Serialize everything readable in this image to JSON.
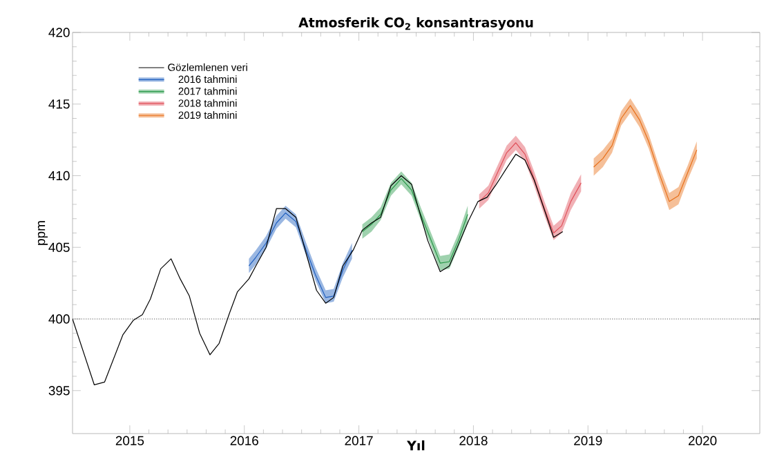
{
  "chart_data": {
    "type": "line",
    "title": "Atmosferik CO$_{2}$ konsantrasyonu",
    "xlabel": "Yıl",
    "ylabel": "ppm",
    "xlim": [
      2014.5,
      2020.5
    ],
    "ylim": [
      392,
      420
    ],
    "xticks": [
      2015,
      2016,
      2017,
      2018,
      2019,
      2020
    ],
    "yticks": [
      395,
      400,
      405,
      410,
      415,
      420
    ],
    "grid": false,
    "legend": "top left",
    "marker": "none",
    "line_style": "solid",
    "ref_lines": [
      {
        "axis": "y",
        "value": 400,
        "color": "#555555",
        "line_style": "dotted"
      }
    ],
    "series": [
      {
        "name": "Gözlemlenen veri",
        "color": "#000000",
        "x": [
          2014.5,
          2014.69,
          2014.78,
          2014.94,
          2015.03,
          2015.11,
          2015.18,
          2015.27,
          2015.36,
          2015.44,
          2015.52,
          2015.61,
          2015.7,
          2015.78,
          2015.87,
          2015.94,
          2016.04,
          2016.1,
          2016.19,
          2016.28,
          2016.36,
          2016.45,
          2016.56,
          2016.63,
          2016.71,
          2016.78,
          2016.86,
          2016.95,
          2017.03,
          2017.11,
          2017.19,
          2017.28,
          2017.37,
          2017.46,
          2017.6,
          2017.71,
          2017.79,
          2017.87,
          2017.96,
          2018.04,
          2018.12,
          2018.2,
          2018.28,
          2018.37,
          2018.45,
          2018.53,
          2018.62,
          2018.7,
          2018.78
        ],
        "values": [
          400.0,
          395.4,
          395.6,
          398.9,
          399.9,
          400.3,
          401.4,
          403.5,
          404.2,
          402.8,
          401.6,
          399.0,
          397.5,
          398.3,
          400.4,
          401.9,
          402.8,
          403.7,
          405.0,
          407.7,
          407.7,
          407.1,
          404.0,
          402.0,
          401.1,
          401.5,
          403.7,
          404.8,
          406.2,
          406.7,
          407.1,
          409.3,
          410.0,
          409.4,
          405.5,
          403.3,
          403.7,
          405.2,
          406.9,
          408.2,
          408.5,
          409.4,
          410.4,
          411.5,
          411.1,
          409.7,
          407.6,
          405.7,
          406.1
        ]
      },
      {
        "name": "2016 tahmini",
        "color": "#1f5fbf",
        "x": [
          2016.04,
          2016.1,
          2016.19,
          2016.28,
          2016.36,
          2016.45,
          2016.54,
          2016.62,
          2016.71,
          2016.78,
          2016.86,
          2016.94
        ],
        "values": [
          403.7,
          404.3,
          405.3,
          406.7,
          407.4,
          406.8,
          404.8,
          403.1,
          401.5,
          401.6,
          403.4,
          404.8
        ],
        "lower": [
          403.2,
          403.8,
          404.9,
          406.3,
          407.0,
          406.4,
          404.4,
          402.7,
          401.1,
          401.2,
          402.9,
          404.2
        ],
        "upper": [
          404.2,
          404.8,
          405.8,
          407.2,
          407.9,
          407.3,
          405.3,
          403.6,
          402.0,
          402.1,
          403.9,
          405.3
        ]
      },
      {
        "name": "2017 tahmini",
        "color": "#2a9a4a",
        "x": [
          2017.03,
          2017.11,
          2017.19,
          2017.28,
          2017.37,
          2017.46,
          2017.54,
          2017.62,
          2017.71,
          2017.79,
          2017.87,
          2017.95
        ],
        "values": [
          406.1,
          406.6,
          407.3,
          409.0,
          409.8,
          409.0,
          407.3,
          405.7,
          403.9,
          404.0,
          405.5,
          407.3
        ],
        "lower": [
          405.6,
          406.1,
          406.9,
          408.6,
          409.4,
          408.6,
          406.9,
          405.3,
          403.4,
          403.5,
          405.0,
          406.7
        ],
        "upper": [
          406.6,
          407.1,
          407.8,
          409.5,
          410.3,
          409.5,
          407.8,
          406.2,
          404.4,
          404.5,
          406.0,
          407.9
        ]
      },
      {
        "name": "2018 tahmini",
        "color": "#e0505a",
        "x": [
          2018.05,
          2018.13,
          2018.21,
          2018.29,
          2018.37,
          2018.45,
          2018.53,
          2018.62,
          2018.7,
          2018.77,
          2018.85,
          2018.94
        ],
        "values": [
          408.2,
          408.8,
          410.2,
          411.6,
          412.3,
          411.5,
          409.8,
          407.7,
          406.0,
          406.5,
          408.2,
          409.5
        ],
        "lower": [
          407.7,
          408.3,
          409.7,
          411.1,
          411.8,
          411.0,
          409.3,
          407.2,
          405.5,
          406.0,
          407.6,
          408.9
        ],
        "upper": [
          408.7,
          409.3,
          410.7,
          412.1,
          412.8,
          412.0,
          410.3,
          408.2,
          406.5,
          407.0,
          408.8,
          410.1
        ]
      },
      {
        "name": "2019 tahmini",
        "color": "#e8701a",
        "x": [
          2019.05,
          2019.13,
          2019.21,
          2019.29,
          2019.37,
          2019.45,
          2019.53,
          2019.62,
          2019.71,
          2019.79,
          2019.87,
          2019.95
        ],
        "values": [
          410.6,
          411.2,
          412.1,
          414.0,
          414.9,
          413.9,
          412.4,
          410.2,
          408.2,
          408.6,
          410.2,
          411.8
        ],
        "lower": [
          410.0,
          410.6,
          411.6,
          413.5,
          414.4,
          413.4,
          411.9,
          409.7,
          407.6,
          408.0,
          409.7,
          411.2
        ],
        "upper": [
          411.2,
          411.8,
          412.6,
          414.5,
          415.4,
          414.4,
          412.9,
          410.7,
          408.8,
          409.2,
          410.7,
          412.4
        ]
      }
    ]
  }
}
